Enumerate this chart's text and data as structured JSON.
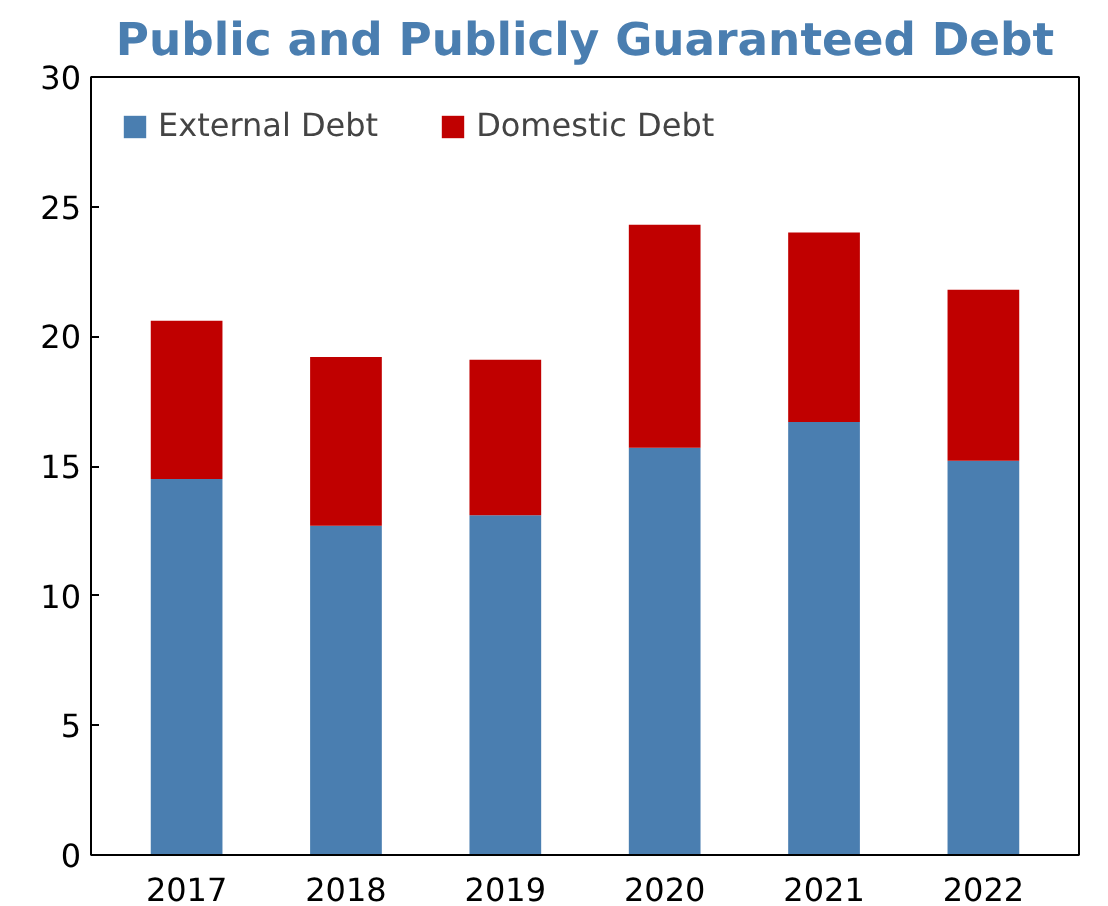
{
  "chart_data": {
    "type": "bar",
    "title": "Public and Publicly Guaranteed Debt",
    "stacked": true,
    "categories": [
      "2017",
      "2018",
      "2019",
      "2020",
      "2021",
      "2022"
    ],
    "series": [
      {
        "name": "External Debt",
        "color": "#4a7eb0",
        "values": [
          14.5,
          12.7,
          13.1,
          15.7,
          16.7,
          15.2
        ]
      },
      {
        "name": "Domestic Debt",
        "color": "#c00000",
        "values": [
          6.1,
          6.5,
          6.0,
          8.6,
          7.3,
          6.6
        ]
      }
    ],
    "ylim": [
      0,
      30
    ],
    "yticks": [
      0,
      5,
      10,
      15,
      20,
      25,
      30
    ],
    "grid": false,
    "legend": "top left"
  }
}
